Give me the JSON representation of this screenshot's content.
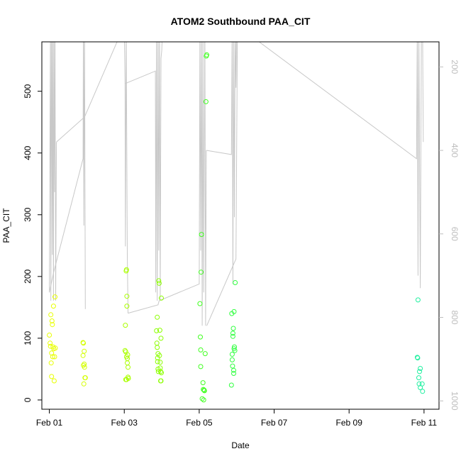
{
  "chart_data": {
    "type": "scatter",
    "title": "ATOM2 Southbound PAA_CIT",
    "xlabel": "Date",
    "ylabel": "PAA_CIT",
    "x_ticks": [
      "Feb 01",
      "Feb 03",
      "Feb 05",
      "Feb 07",
      "Feb 09",
      "Feb 11"
    ],
    "x_tick_days": [
      1,
      3,
      5,
      7,
      9,
      11
    ],
    "xlim": [
      0.8,
      11.4
    ],
    "y_ticks": [
      0,
      100,
      200,
      300,
      400,
      500
    ],
    "ylim": [
      -15,
      580
    ],
    "right_axis": {
      "ticks": [
        200,
        400,
        600,
        800,
        1000
      ],
      "lim": [
        1020,
        140
      ],
      "color": "#bdbdbd",
      "reversed": true
    },
    "grid": false,
    "legend": "none",
    "points": [
      {
        "x": 1.0,
        "y": 105,
        "color": "#e8ff00"
      },
      {
        "x": 1.02,
        "y": 92,
        "color": "#e8ff00"
      },
      {
        "x": 1.03,
        "y": 87,
        "color": "#e8ff00"
      },
      {
        "x": 1.04,
        "y": 138,
        "color": "#e8ff00"
      },
      {
        "x": 1.05,
        "y": 60,
        "color": "#e8ff00"
      },
      {
        "x": 1.06,
        "y": 38,
        "color": "#e8ff00"
      },
      {
        "x": 1.07,
        "y": 128,
        "color": "#e8ff00"
      },
      {
        "x": 1.08,
        "y": 122,
        "color": "#e8ff00"
      },
      {
        "x": 1.09,
        "y": 70,
        "color": "#e8ff00"
      },
      {
        "x": 1.1,
        "y": 86,
        "color": "#e8ff00"
      },
      {
        "x": 1.11,
        "y": 152,
        "color": "#e8ff00"
      },
      {
        "x": 1.12,
        "y": 83,
        "color": "#e8ff00"
      },
      {
        "x": 1.13,
        "y": 31,
        "color": "#e8ff00"
      },
      {
        "x": 1.14,
        "y": 70,
        "color": "#e8ff00"
      },
      {
        "x": 1.15,
        "y": 167,
        "color": "#e8ff00"
      },
      {
        "x": 1.16,
        "y": 84,
        "color": "#e8ff00"
      },
      {
        "x": 1.06,
        "y": 76,
        "color": "#e8ff00"
      },
      {
        "x": 1.9,
        "y": 93,
        "color": "#d4ff00"
      },
      {
        "x": 1.9,
        "y": 72,
        "color": "#d4ff00"
      },
      {
        "x": 1.91,
        "y": 56,
        "color": "#d4ff00"
      },
      {
        "x": 1.92,
        "y": 26,
        "color": "#d4ff00"
      },
      {
        "x": 1.93,
        "y": 79,
        "color": "#d4ff00"
      },
      {
        "x": 1.93,
        "y": 58,
        "color": "#d4ff00"
      },
      {
        "x": 1.94,
        "y": 53,
        "color": "#d4ff00"
      },
      {
        "x": 1.95,
        "y": 36,
        "color": "#d4ff00"
      },
      {
        "x": 1.96,
        "y": 36,
        "color": "#d4ff00"
      },
      {
        "x": 1.91,
        "y": 92,
        "color": "#d4ff00"
      },
      {
        "x": 3.02,
        "y": 80,
        "color": "#aaff00"
      },
      {
        "x": 3.03,
        "y": 121,
        "color": "#aaff00"
      },
      {
        "x": 3.04,
        "y": 78,
        "color": "#aaff00"
      },
      {
        "x": 3.04,
        "y": 33,
        "color": "#aaff00"
      },
      {
        "x": 3.05,
        "y": 209,
        "color": "#aaff00"
      },
      {
        "x": 3.06,
        "y": 211,
        "color": "#aaff00"
      },
      {
        "x": 3.06,
        "y": 70,
        "color": "#aaff00"
      },
      {
        "x": 3.07,
        "y": 168,
        "color": "#aaff00"
      },
      {
        "x": 3.07,
        "y": 152,
        "color": "#aaff00"
      },
      {
        "x": 3.08,
        "y": 67,
        "color": "#aaff00"
      },
      {
        "x": 3.08,
        "y": 60,
        "color": "#aaff00"
      },
      {
        "x": 3.09,
        "y": 73,
        "color": "#aaff00"
      },
      {
        "x": 3.1,
        "y": 53,
        "color": "#aaff00"
      },
      {
        "x": 3.1,
        "y": 37,
        "color": "#aaff00"
      },
      {
        "x": 3.11,
        "y": 35,
        "color": "#aaff00"
      },
      {
        "x": 3.06,
        "y": 33,
        "color": "#aaff00"
      },
      {
        "x": 3.86,
        "y": 112,
        "color": "#8cff00"
      },
      {
        "x": 3.87,
        "y": 92,
        "color": "#8cff00"
      },
      {
        "x": 3.88,
        "y": 85,
        "color": "#8cff00"
      },
      {
        "x": 3.88,
        "y": 134,
        "color": "#8cff00"
      },
      {
        "x": 3.89,
        "y": 68,
        "color": "#8cff00"
      },
      {
        "x": 3.89,
        "y": 62,
        "color": "#8cff00"
      },
      {
        "x": 3.9,
        "y": 75,
        "color": "#8cff00"
      },
      {
        "x": 3.9,
        "y": 50,
        "color": "#8cff00"
      },
      {
        "x": 3.91,
        "y": 46,
        "color": "#8cff00"
      },
      {
        "x": 3.92,
        "y": 193,
        "color": "#8cff00"
      },
      {
        "x": 3.93,
        "y": 189,
        "color": "#8cff00"
      },
      {
        "x": 3.94,
        "y": 72,
        "color": "#8cff00"
      },
      {
        "x": 3.95,
        "y": 113,
        "color": "#8cff00"
      },
      {
        "x": 3.96,
        "y": 61,
        "color": "#8cff00"
      },
      {
        "x": 3.96,
        "y": 52,
        "color": "#8cff00"
      },
      {
        "x": 3.97,
        "y": 46,
        "color": "#8cff00"
      },
      {
        "x": 3.97,
        "y": 31,
        "color": "#8cff00"
      },
      {
        "x": 3.98,
        "y": 100,
        "color": "#8cff00"
      },
      {
        "x": 3.99,
        "y": 44,
        "color": "#8cff00"
      },
      {
        "x": 3.99,
        "y": 165,
        "color": "#8cff00"
      },
      {
        "x": 3.98,
        "y": 31,
        "color": "#8cff00"
      },
      {
        "x": 5.02,
        "y": 156,
        "color": "#40ff20"
      },
      {
        "x": 5.03,
        "y": 102,
        "color": "#40ff20"
      },
      {
        "x": 5.04,
        "y": 81,
        "color": "#40ff20"
      },
      {
        "x": 5.04,
        "y": 54,
        "color": "#40ff20"
      },
      {
        "x": 5.05,
        "y": 207,
        "color": "#40ff20"
      },
      {
        "x": 5.06,
        "y": 268,
        "color": "#40ff20"
      },
      {
        "x": 5.08,
        "y": 2,
        "color": "#40ff20"
      },
      {
        "x": 5.1,
        "y": 28,
        "color": "#40ff20"
      },
      {
        "x": 5.11,
        "y": 17,
        "color": "#40ff20"
      },
      {
        "x": 5.12,
        "y": 0,
        "color": "#40ff20"
      },
      {
        "x": 5.14,
        "y": 15,
        "color": "#40ff20"
      },
      {
        "x": 5.16,
        "y": 75,
        "color": "#40ff20"
      },
      {
        "x": 5.18,
        "y": 483,
        "color": "#40ff20"
      },
      {
        "x": 5.19,
        "y": 557,
        "color": "#40ff20"
      },
      {
        "x": 5.2,
        "y": 559,
        "color": "#40ff20"
      },
      {
        "x": 5.13,
        "y": 16,
        "color": "#40ff20"
      },
      {
        "x": 5.86,
        "y": 24,
        "color": "#30ff40"
      },
      {
        "x": 5.87,
        "y": 140,
        "color": "#30ff40"
      },
      {
        "x": 5.88,
        "y": 65,
        "color": "#30ff40"
      },
      {
        "x": 5.88,
        "y": 74,
        "color": "#30ff40"
      },
      {
        "x": 5.89,
        "y": 55,
        "color": "#30ff40"
      },
      {
        "x": 5.9,
        "y": 103,
        "color": "#30ff40"
      },
      {
        "x": 5.9,
        "y": 108,
        "color": "#30ff40"
      },
      {
        "x": 5.91,
        "y": 116,
        "color": "#30ff40"
      },
      {
        "x": 5.92,
        "y": 48,
        "color": "#30ff40"
      },
      {
        "x": 5.92,
        "y": 43,
        "color": "#30ff40"
      },
      {
        "x": 5.93,
        "y": 143,
        "color": "#30ff40"
      },
      {
        "x": 5.94,
        "y": 86,
        "color": "#30ff40"
      },
      {
        "x": 5.95,
        "y": 80,
        "color": "#30ff40"
      },
      {
        "x": 5.96,
        "y": 190,
        "color": "#30ff40"
      },
      {
        "x": 5.93,
        "y": 83,
        "color": "#30ff40"
      },
      {
        "x": 10.84,
        "y": 162,
        "color": "#20f0a0"
      },
      {
        "x": 10.82,
        "y": 69,
        "color": "#20f0a0"
      },
      {
        "x": 10.83,
        "y": 68,
        "color": "#20f0a0"
      },
      {
        "x": 10.88,
        "y": 46,
        "color": "#20f0a0"
      },
      {
        "x": 10.9,
        "y": 51,
        "color": "#20f0a0"
      },
      {
        "x": 10.86,
        "y": 36,
        "color": "#20f0a0"
      },
      {
        "x": 10.87,
        "y": 26,
        "color": "#20f0a0"
      },
      {
        "x": 10.95,
        "y": 26,
        "color": "#20f0a0"
      },
      {
        "x": 10.9,
        "y": 20,
        "color": "#20f0a0"
      },
      {
        "x": 10.96,
        "y": 14,
        "color": "#20f0a0"
      }
    ],
    "depth_line": {
      "color": "#c8c8c8",
      "segments": [
        [
          [
            1.0,
            740
          ],
          [
            1.03,
            100
          ],
          [
            1.04,
            760
          ],
          [
            1.06,
            100
          ],
          [
            1.08,
            650
          ],
          [
            1.09,
            100
          ],
          [
            1.11,
            760
          ],
          [
            1.12,
            100
          ],
          [
            1.14,
            500
          ],
          [
            1.15,
            100
          ],
          [
            1.17,
            760
          ],
          [
            1.19,
            380
          ]
        ],
        [
          [
            1.0,
            740
          ],
          [
            1.12,
            690
          ],
          [
            1.9,
            420
          ],
          [
            1.91,
            100
          ],
          [
            1.92,
            580
          ],
          [
            1.94,
            100
          ],
          [
            1.96,
            780
          ]
        ],
        [
          [
            1.19,
            380
          ],
          [
            1.94,
            320
          ],
          [
            3.0,
            100
          ],
          [
            3.02,
            240
          ],
          [
            3.03,
            630
          ],
          [
            3.05,
            100
          ],
          [
            3.08,
            650
          ],
          [
            3.1,
            790
          ]
        ],
        [
          [
            3.02,
            240
          ],
          [
            3.83,
            210
          ],
          [
            3.84,
            740
          ],
          [
            3.86,
            100
          ],
          [
            3.88,
            760
          ],
          [
            3.9,
            100
          ],
          [
            3.92,
            640
          ],
          [
            3.94,
            100
          ],
          [
            3.96,
            760
          ],
          [
            3.98,
            180
          ],
          [
            4.0,
            160
          ],
          [
            4.02,
            100
          ]
        ],
        [
          [
            3.1,
            790
          ],
          [
            3.9,
            770
          ],
          [
            3.93,
            760
          ],
          [
            5.0,
            720
          ],
          [
            5.02,
            100
          ],
          [
            5.04,
            640
          ],
          [
            5.06,
            100
          ],
          [
            5.08,
            820
          ],
          [
            5.1,
            100
          ],
          [
            5.12,
            740
          ],
          [
            5.15,
            100
          ],
          [
            5.17,
            820
          ],
          [
            5.19,
            400
          ]
        ],
        [
          [
            5.19,
            400
          ],
          [
            5.86,
            410
          ],
          [
            5.88,
            100
          ],
          [
            5.9,
            720
          ],
          [
            5.92,
            100
          ],
          [
            5.94,
            560
          ],
          [
            5.96,
            100
          ],
          [
            5.98,
            250
          ],
          [
            6.0,
            100
          ]
        ],
        [
          [
            5.2,
            820
          ],
          [
            5.98,
            660
          ],
          [
            6.02,
            100
          ]
        ],
        [
          [
            6.0,
            100
          ],
          [
            10.8,
            420
          ],
          [
            10.82,
            100
          ],
          [
            10.84,
            700
          ],
          [
            10.86,
            100
          ],
          [
            10.9,
            730
          ],
          [
            10.93,
            100
          ],
          [
            10.96,
            100
          ],
          [
            10.98,
            380
          ]
        ]
      ]
    }
  }
}
